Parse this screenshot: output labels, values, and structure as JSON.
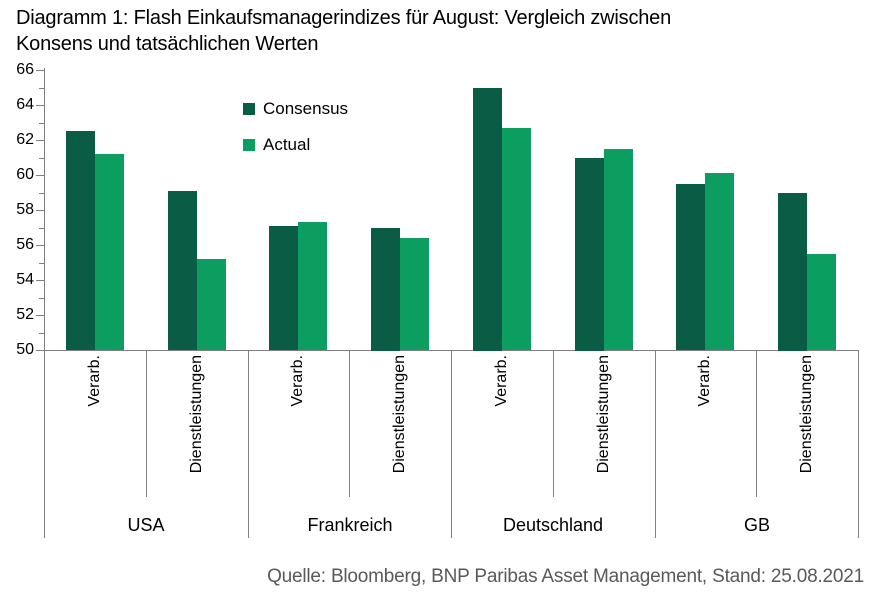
{
  "title": {
    "line1": "Diagramm 1: Flash Einkaufsmanagerindizes für August: Vergleich zwischen",
    "line2": "Konsens und tatsächlichen Werten"
  },
  "source": "Quelle: Bloomberg, BNP Paribas Asset Management, Stand: 25.08.2021",
  "colors": {
    "axis": "#808080",
    "text": "#000000",
    "source_text": "#595959",
    "consensus": "#0B5C44",
    "actual": "#0B9E60"
  },
  "chart_data": {
    "type": "bar",
    "title": "Diagramm 1: Flash Einkaufsmanagerindizes für August: Vergleich zwischen Konsens und tatsächlichen Werten",
    "ylim": [
      50,
      66
    ],
    "ytick_major_step": 2,
    "ytick_minor_step": 1,
    "grid": false,
    "legend_position": "inside-top-left",
    "groups": [
      {
        "label": "USA",
        "subcategories": [
          "Verarb.",
          "Dienstleistungen"
        ]
      },
      {
        "label": "Frankreich",
        "subcategories": [
          "Verarb.",
          "Dienstleistungen"
        ]
      },
      {
        "label": "Deutschland",
        "subcategories": [
          "Verarb.",
          "Dienstleistungen"
        ]
      },
      {
        "label": "GB",
        "subcategories": [
          "Verarb.",
          "Dienstleistungen"
        ]
      }
    ],
    "cell_order": [
      "USA Verarb.",
      "USA Dienstleistungen",
      "Frankreich Verarb.",
      "Frankreich Dienstleistungen",
      "Deutschland Verarb.",
      "Deutschland Dienstleistungen",
      "GB Verarb.",
      "GB Dienstleistungen"
    ],
    "series": [
      {
        "name": "Consensus",
        "color": "#0B5C44",
        "values": [
          62.5,
          59.1,
          57.1,
          57.0,
          65.0,
          61.0,
          59.5,
          59.0
        ]
      },
      {
        "name": "Actual",
        "color": "#0B9E60",
        "values": [
          61.2,
          55.2,
          57.3,
          56.4,
          62.7,
          61.5,
          60.1,
          55.5
        ]
      }
    ]
  }
}
